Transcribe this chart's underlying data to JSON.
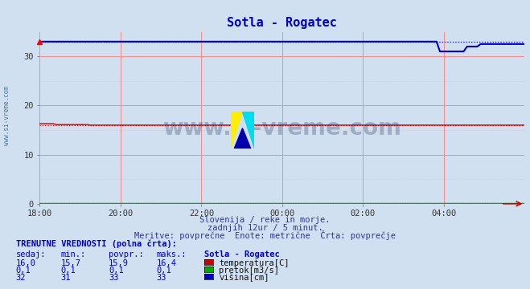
{
  "title": "Sotla - Rogatec",
  "bg_color": "#d0e0f0",
  "plot_bg_color": "#d0e0f0",
  "grid_color_h": "#ff8888",
  "grid_color_v": "#ff8888",
  "ylim": [
    0,
    35
  ],
  "yticks": [
    0,
    10,
    20,
    30
  ],
  "x_tick_labels": [
    "18:00",
    "20:00",
    "22:00",
    "00:00",
    "02:00",
    "04:00"
  ],
  "temp_avg": 15.9,
  "pretok_avg": 0.1,
  "visina_avg": 33,
  "temp_color": "#cc0000",
  "pretok_color": "#00aa00",
  "visina_color": "#0000cc",
  "subtitle1": "Slovenija / reke in morje.",
  "subtitle2": "zadnjih 12ur / 5 minut.",
  "subtitle3": "Meritve: povprečne  Enote: metrične  Črta: povprečje",
  "table_title": "TRENUTNE VREDNOSTI (polna črta):",
  "col_headers": [
    "sedaj:",
    "min.:",
    "povpr.:",
    "maks.:",
    "Sotla - Rogatec"
  ],
  "rows": [
    [
      "16,0",
      "15,7",
      "15,9",
      "16,4",
      "#cc0000",
      "temperatura[C]"
    ],
    [
      "0,1",
      "0,1",
      "0,1",
      "0,1",
      "#00aa00",
      "pretok[m3/s]"
    ],
    [
      "32",
      "31",
      "33",
      "33",
      "#0000cc",
      "višina[cm]"
    ]
  ],
  "watermark": "www.si-vreme.com",
  "watermark_color": "#1a3060",
  "side_text": "www.si-vreme.com",
  "side_color": "#4477aa",
  "title_color": "#0000cc"
}
